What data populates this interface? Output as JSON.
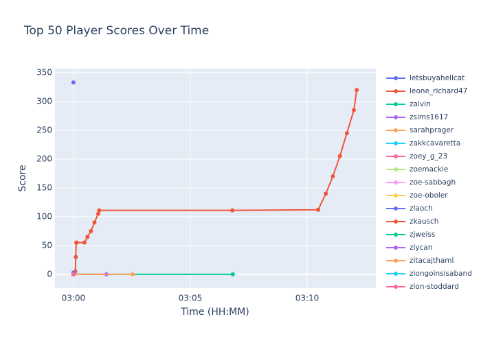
{
  "chart_data": {
    "type": "line",
    "title": "Top 50 Player Scores Over Time",
    "x_label": "Time (HH:MM)",
    "y_label": "Score",
    "xlim": [
      -0.79,
      12.94
    ],
    "ylim": [
      -24,
      357
    ],
    "xticks": [
      {
        "value": 0,
        "label": "03:00"
      },
      {
        "value": 5,
        "label": "03:05"
      },
      {
        "value": 10,
        "label": "03:10"
      }
    ],
    "yticks": [
      0,
      50,
      100,
      150,
      200,
      250,
      300,
      350
    ],
    "grid": true,
    "legend": "right",
    "series": [
      {
        "name": "letsbuyahellcat",
        "color": "#636efa",
        "x": [
          0
        ],
        "values": [
          333
        ]
      },
      {
        "name": "leone_richard47",
        "color": "#EF553B",
        "x": [
          0.02,
          0.08,
          0.1,
          0.12,
          0.14,
          0.47,
          0.6,
          0.75,
          0.9,
          1.06,
          1.1,
          6.8,
          10.47,
          10.8,
          11.1,
          11.4,
          11.7,
          12.0,
          12.12
        ],
        "values": [
          0,
          5,
          30,
          55,
          55,
          55,
          65,
          75,
          90,
          105,
          111,
          111,
          112,
          140,
          170,
          205,
          245,
          285,
          320
        ]
      },
      {
        "name": "zalvin",
        "color": "#00cc96",
        "x": [
          0,
          6.82
        ],
        "values": [
          0,
          0
        ]
      },
      {
        "name": "zsims1617",
        "color": "#ab63fa",
        "x": [
          0,
          1.41
        ],
        "values": [
          0,
          0
        ]
      },
      {
        "name": "sarahprager",
        "color": "#FFA15A",
        "x": [
          0,
          2.53
        ],
        "values": [
          0,
          0
        ]
      },
      {
        "name": "zakkcavaretta",
        "color": "#19d3f3",
        "x": [
          0
        ],
        "values": [
          2
        ]
      },
      {
        "name": "zoey_g_23",
        "color": "#FF6692",
        "x": [
          0
        ],
        "values": [
          1
        ]
      },
      {
        "name": "zoemackie",
        "color": "#B6E880",
        "x": [
          0
        ],
        "values": [
          0
        ]
      },
      {
        "name": "zoe-sabbagh",
        "color": "#FF97FF",
        "x": [
          0
        ],
        "values": [
          0
        ]
      },
      {
        "name": "zoe-oboler",
        "color": "#FECB52",
        "x": [
          0
        ],
        "values": [
          0
        ]
      },
      {
        "name": "zlaoch",
        "color": "#636efa",
        "x": [
          0
        ],
        "values": [
          3
        ]
      },
      {
        "name": "zkausch",
        "color": "#EF553B",
        "x": [
          0
        ],
        "values": [
          0
        ]
      },
      {
        "name": "zjweiss",
        "color": "#00cc96",
        "x": [
          0
        ],
        "values": [
          0
        ]
      },
      {
        "name": "ziycan",
        "color": "#ab63fa",
        "x": [
          0
        ],
        "values": [
          0
        ]
      },
      {
        "name": "zitacajthaml",
        "color": "#FFA15A",
        "x": [
          0
        ],
        "values": [
          0
        ]
      },
      {
        "name": "ziongoinsisaband",
        "color": "#19d3f3",
        "x": [
          0
        ],
        "values": [
          0
        ]
      },
      {
        "name": "zion-stoddard",
        "color": "#FF6692",
        "x": [
          0
        ],
        "values": [
          0
        ]
      }
    ]
  }
}
